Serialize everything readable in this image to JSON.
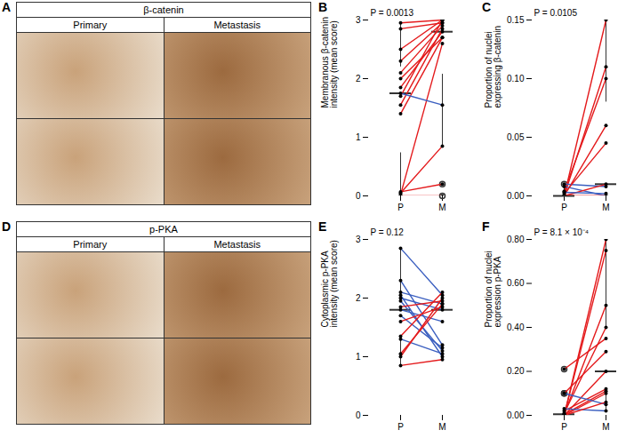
{
  "chart_data": [
    {
      "type": "box",
      "panel": "B",
      "annotation": "P = 0.0013",
      "ylabel": [
        "Membranous β-catenin",
        "intensity (mean score)"
      ],
      "categories": [
        "P",
        "M"
      ],
      "pairs": [
        [
          0.05,
          0.85
        ],
        [
          0.07,
          0.2
        ],
        [
          0,
          0
        ],
        [
          0.02,
          2.6
        ],
        [
          1.4,
          2.7
        ],
        [
          1.55,
          2.85
        ],
        [
          1.7,
          3.0
        ],
        [
          1.75,
          1.55
        ],
        [
          1.85,
          2.8
        ],
        [
          2.0,
          2.7
        ],
        [
          2.1,
          2.9
        ],
        [
          2.3,
          2.95
        ],
        [
          2.5,
          3.0
        ],
        [
          2.85,
          2.95
        ],
        [
          2.95,
          3.0
        ]
      ],
      "colors": [
        "#e41a1c",
        "#e41a1c",
        "#e41a1c",
        "#e41a1c",
        "#e41a1c",
        "#e41a1c",
        "#e41a1c",
        "#3b5fc0",
        "#e41a1c",
        "#e41a1c",
        "#e41a1c",
        "#e41a1c",
        "#e41a1c",
        "#e41a1c",
        "#e41a1c"
      ],
      "ylim": [
        0,
        3
      ],
      "yticks": [
        0,
        1,
        2,
        3
      ]
    },
    {
      "type": "box",
      "panel": "C",
      "annotation": "P = 0.0105",
      "ylabel": [
        "Proportion of nuclei",
        "expressing β-catenin"
      ],
      "categories": [
        "P",
        "M"
      ],
      "pairs": [
        [
          0,
          0.15
        ],
        [
          0,
          0.11
        ],
        [
          0.004,
          0.1
        ],
        [
          0,
          0.06
        ],
        [
          0.008,
          0
        ],
        [
          0.01,
          0.008
        ],
        [
          0.002,
          0.045
        ],
        [
          0,
          0.01
        ],
        [
          0,
          0
        ],
        [
          0,
          0
        ],
        [
          0.003,
          0.002
        ]
      ],
      "colors": [
        "#e41a1c",
        "#e41a1c",
        "#e41a1c",
        "#e41a1c",
        "#3b5fc0",
        "#3b5fc0",
        "#e41a1c",
        "#e41a1c",
        "#e41a1c",
        "#e41a1c",
        "#3b5fc0"
      ],
      "ylim": [
        0,
        0.15
      ],
      "yticks": [
        {
          "value": 0,
          "label": "0.00"
        },
        {
          "value": 0.05,
          "label": "0.05"
        },
        {
          "value": 0.1,
          "label": "0.10"
        },
        {
          "value": 0.15,
          "label": "0.15"
        }
      ]
    },
    {
      "type": "box",
      "panel": "E",
      "annotation": "P = 0.12",
      "ylabel": [
        "Cytoplasmic p-PKA",
        "intensity (mean score)"
      ],
      "categories": [
        "P",
        "M"
      ],
      "pairs": [
        [
          2.85,
          2.05
        ],
        [
          2.3,
          1.2
        ],
        [
          2.1,
          1.9
        ],
        [
          2.05,
          1.0
        ],
        [
          2.0,
          1.8
        ],
        [
          1.95,
          1.1
        ],
        [
          1.85,
          1.95
        ],
        [
          1.8,
          1.6
        ],
        [
          1.7,
          1.15
        ],
        [
          1.6,
          1.85
        ],
        [
          1.35,
          2.1
        ],
        [
          1.3,
          1.05
        ],
        [
          1.05,
          1.9
        ],
        [
          1.0,
          2.0
        ],
        [
          0.85,
          0.95
        ]
      ],
      "colors": [
        "#3b5fc0",
        "#3b5fc0",
        "#3b5fc0",
        "#3b5fc0",
        "#3b5fc0",
        "#3b5fc0",
        "#e41a1c",
        "#3b5fc0",
        "#3b5fc0",
        "#e41a1c",
        "#e41a1c",
        "#3b5fc0",
        "#e41a1c",
        "#e41a1c",
        "#e41a1c"
      ],
      "ylim": [
        0,
        3
      ],
      "yticks": [
        0,
        1,
        2,
        3
      ]
    },
    {
      "type": "box",
      "panel": "F",
      "annotation": "P = 8.1 × 10⁻⁴",
      "ylabel": [
        "Proportion of nuclei",
        "expression p-PKA"
      ],
      "categories": [
        "P",
        "M"
      ],
      "pairs": [
        [
          0,
          0.8
        ],
        [
          0,
          0.75
        ],
        [
          0.005,
          0.5
        ],
        [
          0.01,
          0.4
        ],
        [
          0.21,
          0.35
        ],
        [
          0.1,
          0.29
        ],
        [
          0,
          0.2
        ],
        [
          0.02,
          0.12
        ],
        [
          0.005,
          0.11
        ],
        [
          0,
          0.1
        ],
        [
          0.1,
          0.05
        ],
        [
          0.03,
          0.02
        ],
        [
          0,
          0.06
        ]
      ],
      "colors": [
        "#e41a1c",
        "#e41a1c",
        "#e41a1c",
        "#e41a1c",
        "#e41a1c",
        "#e41a1c",
        "#e41a1c",
        "#e41a1c",
        "#e41a1c",
        "#e41a1c",
        "#3b5fc0",
        "#3b5fc0",
        "#e41a1c"
      ],
      "ylim": [
        0,
        0.8
      ],
      "yticks": [
        {
          "value": 0,
          "label": "0.00"
        },
        {
          "value": 0.2,
          "label": "0.20"
        },
        {
          "value": 0.4,
          "label": "0.40"
        },
        {
          "value": 0.6,
          "label": "0.60"
        },
        {
          "value": 0.8,
          "label": "0.80"
        }
      ]
    }
  ],
  "image_panels": [
    {
      "panel": "A",
      "title": "β-catenin",
      "columns": [
        "Primary",
        "Metastasis"
      ]
    },
    {
      "panel": "D",
      "title": "p-PKA",
      "columns": [
        "Primary",
        "Metastasis"
      ]
    }
  ]
}
